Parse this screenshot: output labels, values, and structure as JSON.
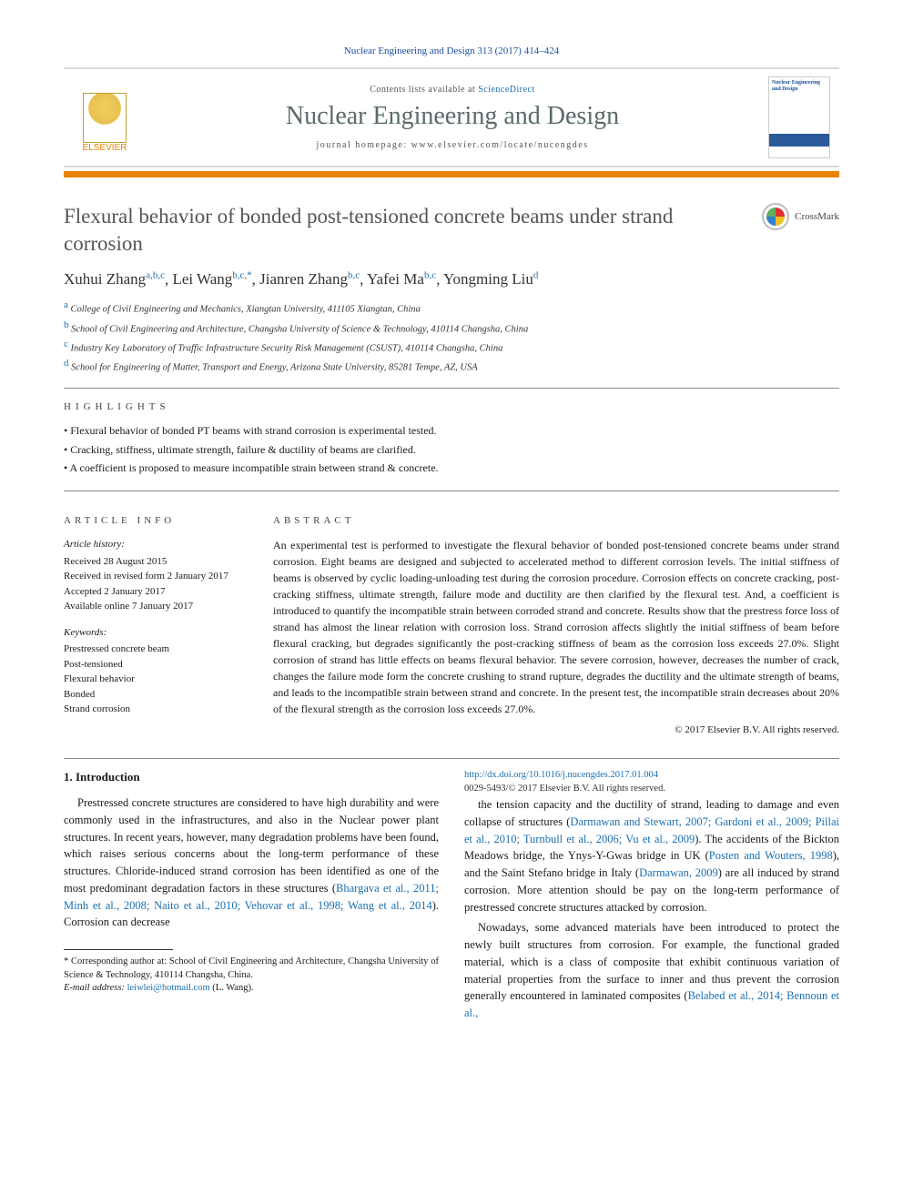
{
  "header": {
    "citation": "Nuclear Engineering and Design 313 (2017) 414–424",
    "contents_prefix": "Contents lists available at ",
    "contents_link": "ScienceDirect",
    "journal_name": "Nuclear Engineering and Design",
    "homepage_prefix": "journal homepage: ",
    "homepage_url": "www.elsevier.com/locate/nucengdes",
    "publisher_logo_label": "ELSEVIER",
    "cover_title": "Nuclear Engineering and Design"
  },
  "colors": {
    "accent_orange": "#e98300",
    "link_blue": "#1a6fb0",
    "title_gray": "#555555",
    "journal_gray": "#5a6a6a"
  },
  "article": {
    "title": "Flexural behavior of bonded post-tensioned concrete beams under strand corrosion",
    "crossmark_label": "CrossMark"
  },
  "authors": [
    {
      "name": "Xuhui Zhang",
      "affil": "a,b,c"
    },
    {
      "name": "Lei Wang",
      "affil": "b,c,*"
    },
    {
      "name": "Jianren Zhang",
      "affil": "b,c"
    },
    {
      "name": "Yafei Ma",
      "affil": "b,c"
    },
    {
      "name": "Yongming Liu",
      "affil": "d"
    }
  ],
  "affiliations": {
    "a": "College of Civil Engineering and Mechanics, Xiangtan University, 411105 Xiangtan, China",
    "b": "School of Civil Engineering and Architecture, Changsha University of Science & Technology, 410114 Changsha, China",
    "c": "Industry Key Laboratory of Traffic Infrastructure Security Risk Management (CSUST), 410114 Changsha, China",
    "d": "School for Engineering of Matter, Transport and Energy, Arizona State University, 85281 Tempe, AZ, USA"
  },
  "highlights_label": "HIGHLIGHTS",
  "highlights": [
    "Flexural behavior of bonded PT beams with strand corrosion is experimental tested.",
    "Cracking, stiffness, ultimate strength, failure & ductility of beams are clarified.",
    "A coefficient is proposed to measure incompatible strain between strand & concrete."
  ],
  "info": {
    "label": "ARTICLE INFO",
    "history_hdr": "Article history:",
    "history": [
      "Received 28 August 2015",
      "Received in revised form 2 January 2017",
      "Accepted 2 January 2017",
      "Available online 7 January 2017"
    ],
    "keywords_hdr": "Keywords:",
    "keywords": [
      "Prestressed concrete beam",
      "Post-tensioned",
      "Flexural behavior",
      "Bonded",
      "Strand corrosion"
    ]
  },
  "abstract": {
    "label": "ABSTRACT",
    "text": "An experimental test is performed to investigate the flexural behavior of bonded post-tensioned concrete beams under strand corrosion. Eight beams are designed and subjected to accelerated method to different corrosion levels. The initial stiffness of beams is observed by cyclic loading-unloading test during the corrosion procedure. Corrosion effects on concrete cracking, post-cracking stiffness, ultimate strength, failure mode and ductility are then clarified by the flexural test. And, a coefficient is introduced to quantify the incompatible strain between corroded strand and concrete. Results show that the prestress force loss of strand has almost the linear relation with corrosion loss. Strand corrosion affects slightly the initial stiffness of beam before flexural cracking, but degrades significantly the post-cracking stiffness of beam as the corrosion loss exceeds 27.0%. Slight corrosion of strand has little effects on beams flexural behavior. The severe corrosion, however, decreases the number of crack, changes the failure mode form the concrete crushing to strand rupture, degrades the ductility and the ultimate strength of beams, and leads to the incompatible strain between strand and concrete. In the present test, the incompatible strain decreases about 20% of the flexural strength as the corrosion loss exceeds 27.0%.",
    "copyright": "© 2017 Elsevier B.V. All rights reserved."
  },
  "body": {
    "section1_title": "1. Introduction",
    "para1_pre": "Prestressed concrete structures are considered to have high durability and were commonly used in the infrastructures, and also in the Nuclear power plant structures. In recent years, however, many degradation problems have been found, which raises serious concerns about the long-term performance of these structures. Chloride-induced strand corrosion has been identified as one of the most predominant degradation factors in these structures (",
    "para1_ref": "Bhargava et al., 2011; Minh et al., 2008; Naito et al., 2010; Vehovar et al., 1998; Wang et al., 2014",
    "para1_post": "). Corrosion can decrease",
    "para2_pre": "the tension capacity and the ductility of strand, leading to damage and even collapse of structures (",
    "para2_ref": "Darmawan and Stewart, 2007; Gardoni et al., 2009; Pillai et al., 2010; Turnbull et al., 2006; Vu et al., 2009",
    "para2_mid1": "). The accidents of the Bickton Meadows bridge, the Ynys-Y-Gwas bridge in UK (",
    "para2_ref2": "Posten and Wouters, 1998",
    "para2_mid2": "), and the Saint Stefano bridge in Italy (",
    "para2_ref3": "Darmawan, 2009",
    "para2_post": ") are all induced by strand corrosion. More attention should be pay on the long-term performance of prestressed concrete structures attacked by corrosion.",
    "para3_pre": "Nowadays, some advanced materials have been introduced to protect the newly built structures from corrosion. For example, the functional graded material, which is a class of composite that exhibit continuous variation of material properties from the surface to inner and thus prevent the corrosion generally encountered in laminated composites (",
    "para3_ref": "Belabed et al., 2014; Bennoun et al.,"
  },
  "footnotes": {
    "corr_label": "* Corresponding author at: School of Civil Engineering and Architecture, Changsha University of Science & Technology, 410114 Changsha, China.",
    "email_label": "E-mail address: ",
    "email": "leiwlei@hotmail.com",
    "email_name": " (L. Wang)."
  },
  "footer": {
    "doi": "http://dx.doi.org/10.1016/j.nucengdes.2017.01.004",
    "issn_line": "0029-5493/© 2017 Elsevier B.V. All rights reserved."
  }
}
